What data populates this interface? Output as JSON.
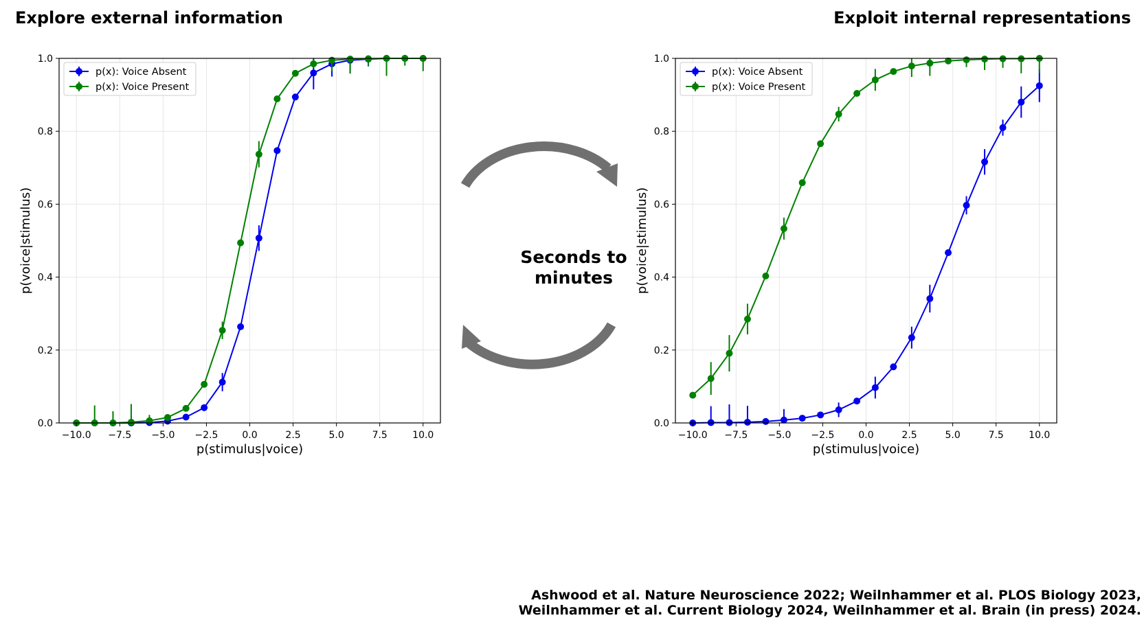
{
  "headings": {
    "left": "Explore external information",
    "right": "Exploit internal representations"
  },
  "center_label": {
    "line1": "Seconds to",
    "line2": "minutes"
  },
  "citation": {
    "line1": "Ashwood et al. Nature Neuroscience 2022; Weilnhammer et al. PLOS Biology 2023,",
    "line2": "Weilnhammer et al. Current Biology 2024, Weilnhammer et al. Brain (in press) 2024."
  },
  "colors": {
    "absent": "#0000ee",
    "present": "#008000",
    "arrow": "#707070",
    "grid": "#e6e6e6"
  },
  "chart_data": [
    {
      "type": "line",
      "xlabel": "p(stimulus|voice)",
      "ylabel": "p(voice|stimulus)",
      "xlim": [
        -11,
        11
      ],
      "ylim": [
        0,
        1
      ],
      "xticks": [
        -10,
        -7.5,
        -5,
        -2.5,
        0,
        2.5,
        5,
        7.5,
        10
      ],
      "xtick_labels": [
        "−10.0",
        "−7.5",
        "−5.0",
        "−2.5",
        "0.0",
        "2.5",
        "5.0",
        "7.5",
        "10.0"
      ],
      "yticks": [
        0,
        0.2,
        0.4,
        0.6,
        0.8,
        1.0
      ],
      "ytick_labels": [
        "0.0",
        "0.2",
        "0.4",
        "0.6",
        "0.8",
        "1.0"
      ],
      "grid": true,
      "legend_position": "top-left",
      "x": [
        -10,
        -8.95,
        -7.89,
        -6.84,
        -5.79,
        -4.74,
        -3.68,
        -2.63,
        -1.58,
        -0.53,
        0.53,
        1.58,
        2.63,
        3.68,
        4.74,
        5.79,
        6.84,
        7.89,
        8.95,
        10
      ],
      "series": [
        {
          "name": "p(x): Voice Absent",
          "color_key": "absent",
          "values": [
            0.0,
            0.0,
            0.0,
            0.0,
            0.001,
            0.005,
            0.016,
            0.042,
            0.112,
            0.264,
            0.507,
            0.747,
            0.894,
            0.96,
            0.985,
            0.995,
            0.998,
            1.0,
            1.0,
            1.0
          ],
          "errors": [
            0,
            0,
            0,
            0,
            0,
            0,
            0,
            0,
            0.025,
            0,
            0.035,
            0,
            0,
            0.045,
            0.035,
            0.035,
            0.02,
            0,
            0,
            0
          ]
        },
        {
          "name": "p(x): Voice Present",
          "color_key": "present",
          "values": [
            0.0,
            0.0,
            0.0,
            0.002,
            0.006,
            0.015,
            0.04,
            0.106,
            0.254,
            0.494,
            0.737,
            0.889,
            0.959,
            0.985,
            0.995,
            0.998,
            0.999,
            1.0,
            1.0,
            1.0
          ],
          "errors": [
            0,
            0.048,
            0.032,
            0.05,
            0.016,
            0.008,
            0,
            0,
            0.024,
            0,
            0.036,
            0,
            0,
            0.012,
            0.03,
            0.04,
            0.02,
            0.048,
            0.02,
            0.035
          ]
        }
      ]
    },
    {
      "type": "line",
      "xlabel": "p(stimulus|voice)",
      "ylabel": "p(voice|stimulus)",
      "xlim": [
        -11,
        11
      ],
      "ylim": [
        0,
        1
      ],
      "xticks": [
        -10,
        -7.5,
        -5,
        -2.5,
        0,
        2.5,
        5,
        7.5,
        10
      ],
      "xtick_labels": [
        "−10.0",
        "−7.5",
        "−5.0",
        "−2.5",
        "0.0",
        "2.5",
        "5.0",
        "7.5",
        "10.0"
      ],
      "yticks": [
        0,
        0.2,
        0.4,
        0.6,
        0.8,
        1.0
      ],
      "ytick_labels": [
        "0.0",
        "0.2",
        "0.4",
        "0.6",
        "0.8",
        "1.0"
      ],
      "grid": true,
      "legend_position": "top-left",
      "x": [
        -10,
        -8.95,
        -7.89,
        -6.84,
        -5.79,
        -4.74,
        -3.68,
        -2.63,
        -1.58,
        -0.53,
        0.53,
        1.58,
        2.63,
        3.68,
        4.74,
        5.79,
        6.84,
        7.89,
        8.95,
        10
      ],
      "series": [
        {
          "name": "p(x): Voice Absent",
          "color_key": "absent",
          "values": [
            0.0,
            0.001,
            0.001,
            0.002,
            0.004,
            0.008,
            0.013,
            0.022,
            0.036,
            0.06,
            0.097,
            0.154,
            0.234,
            0.341,
            0.467,
            0.597,
            0.716,
            0.81,
            0.88,
            0.925
          ],
          "errors": [
            0,
            0.045,
            0.05,
            0.045,
            0,
            0.03,
            0,
            0,
            0.02,
            0,
            0.03,
            0,
            0.03,
            0.038,
            0,
            0.025,
            0.035,
            0.022,
            0.043,
            0.045
          ]
        },
        {
          "name": "p(x): Voice Present",
          "color_key": "present",
          "values": [
            0.076,
            0.122,
            0.191,
            0.285,
            0.403,
            0.533,
            0.659,
            0.766,
            0.847,
            0.904,
            0.941,
            0.964,
            0.979,
            0.987,
            0.993,
            0.996,
            0.998,
            0.999,
            0.999,
            1.0
          ],
          "errors": [
            0,
            0.045,
            0.05,
            0.042,
            0,
            0.03,
            0,
            0,
            0.02,
            0,
            0.03,
            0,
            0.03,
            0.035,
            0,
            0.02,
            0.03,
            0.025,
            0.04,
            0.04
          ]
        }
      ]
    }
  ]
}
